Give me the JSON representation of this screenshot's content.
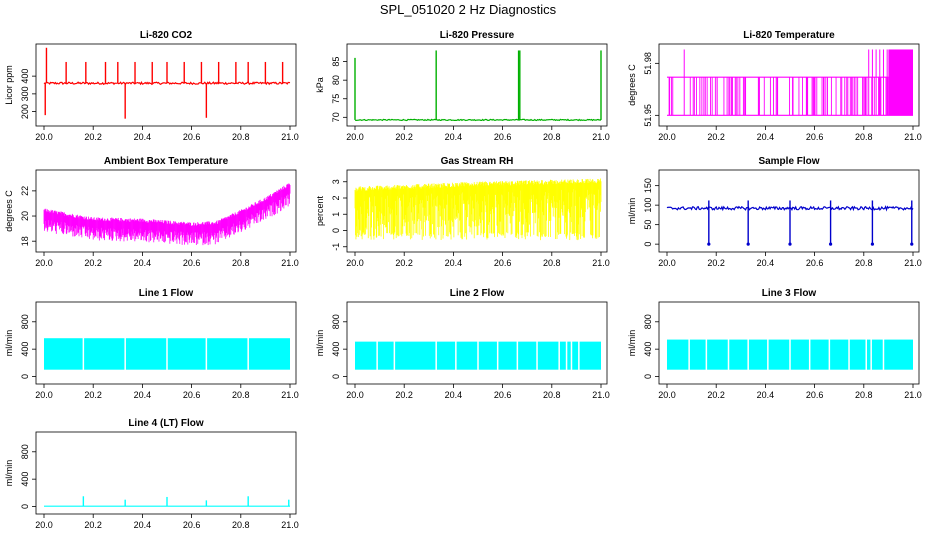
{
  "page_title": "SPL_051020  2 Hz Diagnostics",
  "chart_data": [
    {
      "type": "line",
      "title": "Li-820 CO2",
      "xlabel": "",
      "ylabel": "Licor ppm",
      "xlim": [
        20.0,
        21.0
      ],
      "ylim": [
        130,
        570
      ],
      "xticks": [
        "20.0",
        "20.2",
        "20.4",
        "20.6",
        "20.8",
        "21.0"
      ],
      "yticks": [
        200,
        300,
        400
      ],
      "color": "#ff0000",
      "series": [
        {
          "baseline": 360,
          "noise": 6,
          "spikes": [
            {
              "x": 20.005,
              "y": 180
            },
            {
              "x": 20.01,
              "y": 560
            },
            {
              "x": 20.09,
              "y": 480
            },
            {
              "x": 20.17,
              "y": 480
            },
            {
              "x": 20.25,
              "y": 480
            },
            {
              "x": 20.3,
              "y": 480
            },
            {
              "x": 20.33,
              "y": 160
            },
            {
              "x": 20.37,
              "y": 480
            },
            {
              "x": 20.44,
              "y": 480
            },
            {
              "x": 20.5,
              "y": 480
            },
            {
              "x": 20.57,
              "y": 480
            },
            {
              "x": 20.64,
              "y": 480
            },
            {
              "x": 20.66,
              "y": 165
            },
            {
              "x": 20.71,
              "y": 480
            },
            {
              "x": 20.78,
              "y": 480
            },
            {
              "x": 20.83,
              "y": 480
            },
            {
              "x": 20.9,
              "y": 480
            },
            {
              "x": 20.97,
              "y": 480
            }
          ]
        }
      ]
    },
    {
      "type": "line",
      "title": "Li-820 Pressure",
      "xlabel": "",
      "ylabel": "kPa",
      "xlim": [
        20.0,
        21.0
      ],
      "ylim": [
        68.2,
        89.2
      ],
      "xticks": [
        "20.0",
        "20.2",
        "20.4",
        "20.6",
        "20.8",
        "21.0"
      ],
      "yticks": [
        70,
        75,
        80,
        85
      ],
      "color": "#00b000",
      "series": [
        {
          "baseline": 69.3,
          "noise": 0.15,
          "spikes": [
            {
              "x": 20.0,
              "y": 86
            },
            {
              "x": 20.33,
              "y": 88
            },
            {
              "x": 20.665,
              "y": 88
            },
            {
              "x": 20.67,
              "y": 88
            },
            {
              "x": 21.0,
              "y": 88
            }
          ]
        }
      ]
    },
    {
      "type": "line",
      "title": "Li-820 Temperature",
      "xlabel": "",
      "ylabel": "degrees C",
      "xlim": [
        20.0,
        21.0
      ],
      "ylim": [
        51.945,
        51.99
      ],
      "xticks": [
        "20.0",
        "20.2",
        "20.4",
        "20.6",
        "20.8",
        "21.0"
      ],
      "yticks": [
        51.95,
        51.98
      ],
      "color": "#ff00ff",
      "series": [
        {
          "levels": [
            51.95,
            51.972,
            51.988
          ],
          "switch_x": 20.9
        }
      ]
    },
    {
      "type": "line",
      "title": "Ambient Box Temperature",
      "xlabel": "",
      "ylabel": "degrees C",
      "xlim": [
        20.0,
        21.0
      ],
      "ylim": [
        17.3,
        23.5
      ],
      "xticks": [
        "20.0",
        "20.2",
        "20.4",
        "20.6",
        "20.8",
        "21.0"
      ],
      "yticks": [
        18,
        20,
        22
      ],
      "color": "#ff00ff",
      "series": [
        {
          "trend": [
            [
              20.0,
              20.4
            ],
            [
              20.2,
              19.7
            ],
            [
              20.4,
              19.6
            ],
            [
              20.6,
              19.3
            ],
            [
              20.7,
              19.4
            ],
            [
              20.8,
              20.3
            ],
            [
              20.9,
              21.3
            ],
            [
              21.0,
              22.5
            ]
          ],
          "band": 1.2
        }
      ]
    },
    {
      "type": "line",
      "title": "Gas Stream RH",
      "xlabel": "",
      "ylabel": "percent",
      "xlim": [
        20.0,
        21.0
      ],
      "ylim": [
        -1.2,
        3.6
      ],
      "xticks": [
        "20.0",
        "20.2",
        "20.4",
        "20.6",
        "20.8",
        "21.0"
      ],
      "yticks": [
        -1,
        0,
        1,
        2,
        3
      ],
      "color": "#ffff00",
      "series": [
        {
          "trend": [
            [
              20.0,
              2.5
            ],
            [
              20.5,
              2.8
            ],
            [
              21.0,
              3.0
            ]
          ],
          "low": -0.6
        }
      ]
    },
    {
      "type": "line",
      "title": "Sample Flow",
      "xlabel": "",
      "ylabel": "ml/min",
      "xlim": [
        20.0,
        21.0
      ],
      "ylim": [
        -15,
        185
      ],
      "xticks": [
        "20.0",
        "20.2",
        "20.4",
        "20.6",
        "20.8",
        "21.0"
      ],
      "yticks": [
        0,
        50,
        100,
        150
      ],
      "color": "#0000cc",
      "series": [
        {
          "baseline": 92,
          "noise": 4,
          "drops": [
            20.17,
            20.33,
            20.5,
            20.665,
            20.835,
            20.995
          ],
          "drop_to": 0,
          "peak_to": 112
        }
      ]
    },
    {
      "type": "area",
      "title": "Line 1 Flow",
      "xlabel": "",
      "ylabel": "ml/min",
      "xlim": [
        20.0,
        21.0
      ],
      "ylim": [
        -80,
        1060
      ],
      "xticks": [
        "20.0",
        "20.2",
        "20.4",
        "20.6",
        "20.8",
        "21.0"
      ],
      "yticks": [
        0,
        400,
        800
      ],
      "color": "#00ffff",
      "series": [
        {
          "low": 100,
          "high": 560,
          "gaps": [
            20.16,
            20.33,
            20.5,
            20.66,
            20.83
          ]
        }
      ]
    },
    {
      "type": "area",
      "title": "Line 2 Flow",
      "xlabel": "",
      "ylabel": "ml/min",
      "xlim": [
        20.0,
        21.0
      ],
      "ylim": [
        -80,
        1060
      ],
      "xticks": [
        "20.0",
        "20.2",
        "20.4",
        "20.6",
        "20.8",
        "21.0"
      ],
      "yticks": [
        0,
        400,
        800
      ],
      "color": "#00ffff",
      "series": [
        {
          "low": 100,
          "high": 510,
          "gaps": [
            20.09,
            20.16,
            20.33,
            20.41,
            20.5,
            20.58,
            20.66,
            20.74,
            20.83,
            20.86,
            20.88,
            20.91
          ]
        }
      ]
    },
    {
      "type": "area",
      "title": "Line 3 Flow",
      "xlabel": "",
      "ylabel": "ml/min",
      "xlim": [
        20.0,
        21.0
      ],
      "ylim": [
        -80,
        1060
      ],
      "xticks": [
        "20.0",
        "20.2",
        "20.4",
        "20.6",
        "20.8",
        "21.0"
      ],
      "yticks": [
        0,
        400,
        800
      ],
      "color": "#00ffff",
      "series": [
        {
          "low": 100,
          "high": 540,
          "gaps": [
            20.09,
            20.16,
            20.25,
            20.33,
            20.41,
            20.5,
            20.58,
            20.66,
            20.74,
            20.81,
            20.83,
            20.88
          ]
        }
      ]
    },
    {
      "type": "line",
      "title": "Line 4 (LT) Flow",
      "xlabel": "",
      "ylabel": "ml/min",
      "xlim": [
        20.0,
        21.0
      ],
      "ylim": [
        -80,
        1060
      ],
      "xticks": [
        "20.0",
        "20.2",
        "20.4",
        "20.6",
        "20.8",
        "21.0"
      ],
      "yticks": [
        0,
        400,
        800
      ],
      "color": "#00ffff",
      "series": [
        {
          "baseline": 5,
          "spikes": [
            {
              "x": 20.16,
              "y": 150
            },
            {
              "x": 20.33,
              "y": 100
            },
            {
              "x": 20.5,
              "y": 140
            },
            {
              "x": 20.66,
              "y": 90
            },
            {
              "x": 20.83,
              "y": 150
            },
            {
              "x": 20.995,
              "y": 100
            }
          ]
        }
      ]
    }
  ]
}
